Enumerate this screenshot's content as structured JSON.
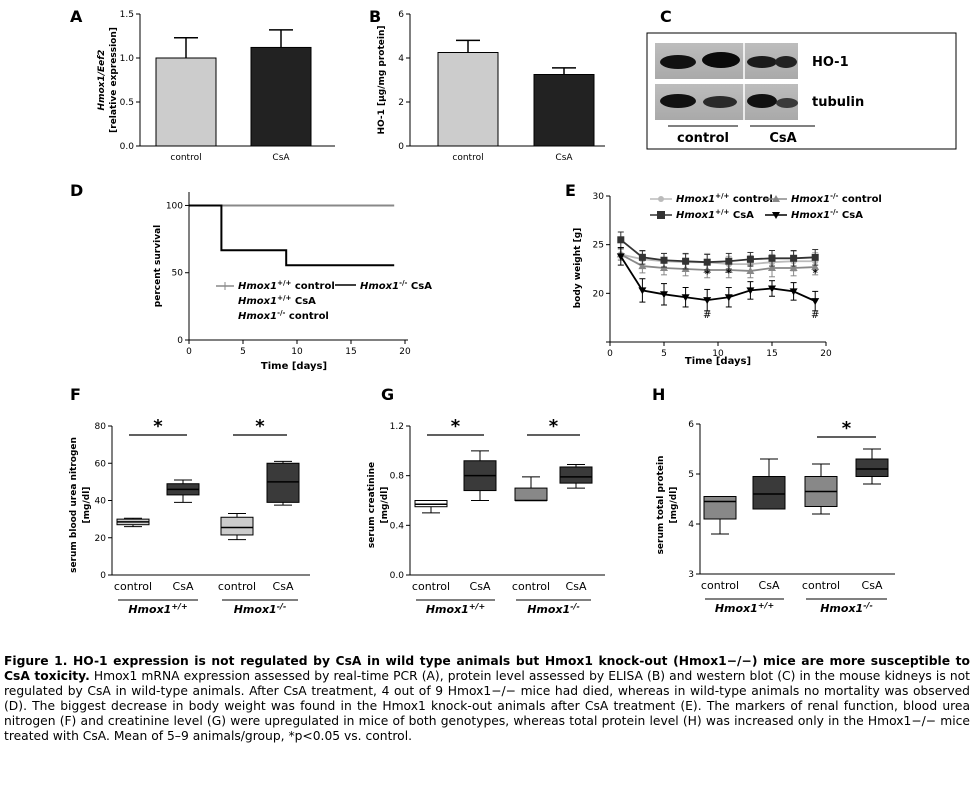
{
  "panels": {
    "A": {
      "label": "A",
      "ylabel_line1": "Hmox1/Eef2",
      "ylabel_line2": "[relative expression]",
      "yticks": [
        "0.0",
        "0.5",
        "1.0",
        "1.5"
      ],
      "categories": [
        "control",
        "CsA"
      ]
    },
    "B": {
      "label": "B",
      "ylabel": "HO-1 [µg/mg protein]",
      "yticks": [
        "0",
        "2",
        "4",
        "6"
      ],
      "categories": [
        "control",
        "CsA"
      ]
    },
    "C": {
      "label": "C",
      "band1": "HO-1",
      "band2": "tubulin",
      "group1": "control",
      "group2": "CsA"
    },
    "D": {
      "label": "D",
      "ylabel": "percent survival",
      "xlabel": "Time [days]",
      "yticks": [
        "0",
        "50",
        "100"
      ],
      "xticks": [
        "0",
        "5",
        "10",
        "15",
        "20"
      ],
      "legend": [
        {
          "gene": "Hmox1",
          "sup": "+/+",
          "rest": " control"
        },
        {
          "gene": "Hmox1",
          "sup": "+/+",
          "rest": " CsA"
        },
        {
          "gene": "Hmox1",
          "sup": "-/-",
          "rest": " control"
        },
        {
          "gene": "Hmox1",
          "sup": "-/-",
          "rest": " CsA"
        }
      ]
    },
    "E": {
      "label": "E",
      "ylabel": "body weight [g]",
      "xlabel": "Time [days]",
      "yticks": [
        "20",
        "25",
        "30"
      ],
      "xticks": [
        "0",
        "5",
        "10",
        "15",
        "20"
      ],
      "legend": [
        {
          "gene": "Hmox1",
          "sup": "+/+",
          "rest": " control"
        },
        {
          "gene": "Hmox1",
          "sup": "-/-",
          "rest": " control"
        },
        {
          "gene": "Hmox1",
          "sup": "+/+",
          "rest": " CsA"
        },
        {
          "gene": "Hmox1",
          "sup": "-/-",
          "rest": " CsA"
        }
      ],
      "star": "*",
      "hash": "#"
    },
    "F": {
      "label": "F",
      "ylabel_line1": "serum blood urea nitrogen",
      "ylabel_line2": "[mg/dl]",
      "yticks": [
        "0",
        "20",
        "40",
        "60",
        "80"
      ],
      "categories": [
        "control",
        "CsA",
        "control",
        "CsA"
      ],
      "star": "*"
    },
    "G": {
      "label": "G",
      "ylabel_line1": "serum creatinine",
      "ylabel_line2": "[mg/dl]",
      "yticks": [
        "0.0",
        "0.4",
        "0.8",
        "1.2"
      ],
      "categories": [
        "control",
        "CsA",
        "control",
        "CsA"
      ],
      "star": "*"
    },
    "H": {
      "label": "H",
      "ylabel_line1": "serum total protein",
      "ylabel_line2": "[mg/dl]",
      "yticks": [
        "3",
        "4",
        "5",
        "6"
      ],
      "categories": [
        "control",
        "CsA",
        "control",
        "CsA"
      ],
      "star": "*"
    },
    "genotypes": [
      {
        "gene": "Hmox1",
        "sup": "+/+"
      },
      {
        "gene": "Hmox1",
        "sup": "-/-"
      }
    ]
  },
  "caption": {
    "title": "Figure 1. HO-1 expression is not regulated by CsA in wild type animals but Hmox1 knock-out (Hmox1−/−) mice are more susceptible to CsA toxicity.",
    "body": "Hmox1 mRNA expression assessed by real-time PCR (A), protein level assessed by ELISA (B) and western blot (C) in the mouse kidneys is not regulated by CsA in wild-type animals. After CsA treatment, 4 out of 9 Hmox1−/− mice had died, whereas in wild-type animals no mortality was observed (D). The biggest decrease in body weight was found in the Hmox1 knock-out animals after CsA treatment (E). The markers of renal function, blood urea nitrogen (F) and creatinine level (G) were upregulated in mice of both genotypes, whereas total protein level (H) was increased only in the Hmox1−/− mice treated with CsA. Mean of 5–9 animals/group, *p<0.05 vs. control."
  },
  "chart_data": [
    {
      "panel": "A",
      "type": "bar",
      "categories": [
        "control",
        "CsA"
      ],
      "values": [
        1.0,
        1.12
      ],
      "errors": [
        0.23,
        0.2
      ],
      "ylabel": "Hmox1/Eef2 [relative expression]",
      "ylim": [
        0,
        1.5
      ],
      "colors": [
        "#cccccc",
        "#222222"
      ]
    },
    {
      "panel": "B",
      "type": "bar",
      "categories": [
        "control",
        "CsA"
      ],
      "values": [
        4.25,
        3.25
      ],
      "errors": [
        0.55,
        0.3
      ],
      "ylabel": "HO-1 [µg/mg protein]",
      "ylim": [
        0,
        6
      ],
      "colors": [
        "#cccccc",
        "#222222"
      ]
    },
    {
      "panel": "D",
      "type": "line",
      "xlabel": "Time [days]",
      "ylabel": "percent survival",
      "xlim": [
        0,
        20
      ],
      "ylim": [
        0,
        110
      ],
      "series": [
        {
          "name": "Hmox1+/+ control, Hmox1+/+ CsA, Hmox1-/- control",
          "x": [
            0,
            19
          ],
          "y": [
            100,
            100
          ],
          "color": "#888888"
        },
        {
          "name": "Hmox1-/- CsA",
          "x": [
            0,
            3,
            3,
            9,
            9,
            19
          ],
          "y": [
            100,
            100,
            66.7,
            66.7,
            55.6,
            55.6
          ],
          "color": "#000000"
        }
      ]
    },
    {
      "panel": "E",
      "type": "line",
      "xlabel": "Time [days]",
      "ylabel": "body weight [g]",
      "xlim": [
        0,
        20
      ],
      "ylim": [
        15,
        30
      ],
      "x": [
        1,
        3,
        5,
        7,
        9,
        11,
        13,
        15,
        17,
        19
      ],
      "series": [
        {
          "name": "Hmox1+/+ control",
          "color": "#bbbbbb",
          "marker": "circle",
          "y": [
            24.0,
            23.5,
            23.3,
            23.2,
            23.2,
            23.0,
            23.0,
            23.2,
            23.3,
            23.3
          ],
          "err": [
            0.5,
            0.8,
            0.8,
            0.8,
            0.9,
            0.8,
            0.9,
            0.8,
            1.0,
            0.9
          ]
        },
        {
          "name": "Hmox1-/- control",
          "color": "#888888",
          "marker": "triangle",
          "y": [
            24.0,
            22.8,
            22.6,
            22.5,
            22.4,
            22.4,
            22.3,
            22.6,
            22.6,
            22.7
          ],
          "err": [
            0.6,
            0.7,
            0.7,
            0.7,
            0.8,
            0.8,
            0.7,
            0.9,
            0.8,
            0.8
          ]
        },
        {
          "name": "Hmox1+/+ CsA",
          "color": "#333333",
          "marker": "square",
          "y": [
            25.5,
            23.7,
            23.4,
            23.3,
            23.2,
            23.3,
            23.5,
            23.6,
            23.6,
            23.7
          ],
          "err": [
            0.8,
            0.7,
            0.7,
            0.8,
            0.8,
            0.8,
            0.7,
            0.8,
            0.8,
            0.8
          ]
        },
        {
          "name": "Hmox1-/- CsA",
          "color": "#000000",
          "marker": "triangle-down",
          "y": [
            23.8,
            20.3,
            19.9,
            19.6,
            19.3,
            19.6,
            20.3,
            20.5,
            20.2,
            19.2
          ],
          "err": [
            0.9,
            1.2,
            1.1,
            1.0,
            1.1,
            1.0,
            0.9,
            0.8,
            0.9,
            1.0
          ]
        }
      ]
    },
    {
      "panel": "F",
      "type": "box",
      "categories": [
        "control",
        "CsA",
        "control",
        "CsA"
      ],
      "ylim": [
        0,
        80
      ],
      "ylabel": "serum blood urea nitrogen [mg/dl]",
      "boxes": [
        {
          "min": 26,
          "q1": 27,
          "median": 28.5,
          "q3": 30,
          "max": 30.5,
          "fill": "#cccccc"
        },
        {
          "min": 39,
          "q1": 43,
          "median": 46,
          "q3": 49,
          "max": 51,
          "fill": "#3a3a3a"
        },
        {
          "min": 19,
          "q1": 21.5,
          "median": 25.5,
          "q3": 31,
          "max": 33,
          "fill": "#cccccc"
        },
        {
          "min": 37.5,
          "q1": 39,
          "median": 50,
          "q3": 60,
          "max": 61,
          "fill": "#3a3a3a"
        }
      ]
    },
    {
      "panel": "G",
      "type": "box",
      "categories": [
        "control",
        "CsA",
        "control",
        "CsA"
      ],
      "ylim": [
        0,
        1.2
      ],
      "ylabel": "serum creatinine [mg/dl]",
      "boxes": [
        {
          "min": 0.5,
          "q1": 0.55,
          "median": 0.57,
          "q3": 0.6,
          "max": 0.6,
          "fill": "#ffffff"
        },
        {
          "min": 0.6,
          "q1": 0.68,
          "median": 0.8,
          "q3": 0.92,
          "max": 1.0,
          "fill": "#3a3a3a"
        },
        {
          "min": 0.6,
          "q1": 0.6,
          "median": 0.6,
          "q3": 0.7,
          "max": 0.79,
          "fill": "#888888"
        },
        {
          "min": 0.7,
          "q1": 0.74,
          "median": 0.79,
          "q3": 0.87,
          "max": 0.89,
          "fill": "#3a3a3a"
        }
      ]
    },
    {
      "panel": "H",
      "type": "box",
      "categories": [
        "control",
        "CsA",
        "control",
        "CsA"
      ],
      "ylim": [
        3,
        6
      ],
      "ylabel": "serum total protein [mg/dl]",
      "boxes": [
        {
          "min": 3.8,
          "q1": 4.1,
          "median": 4.45,
          "q3": 4.55,
          "max": 4.55,
          "fill": "#888888"
        },
        {
          "min": 4.3,
          "q1": 4.3,
          "median": 4.6,
          "q3": 4.95,
          "max": 5.3,
          "fill": "#3a3a3a"
        },
        {
          "min": 4.2,
          "q1": 4.35,
          "median": 4.65,
          "q3": 4.95,
          "max": 5.2,
          "fill": "#888888"
        },
        {
          "min": 4.8,
          "q1": 4.95,
          "median": 5.1,
          "q3": 5.3,
          "max": 5.5,
          "fill": "#3a3a3a"
        }
      ]
    }
  ]
}
